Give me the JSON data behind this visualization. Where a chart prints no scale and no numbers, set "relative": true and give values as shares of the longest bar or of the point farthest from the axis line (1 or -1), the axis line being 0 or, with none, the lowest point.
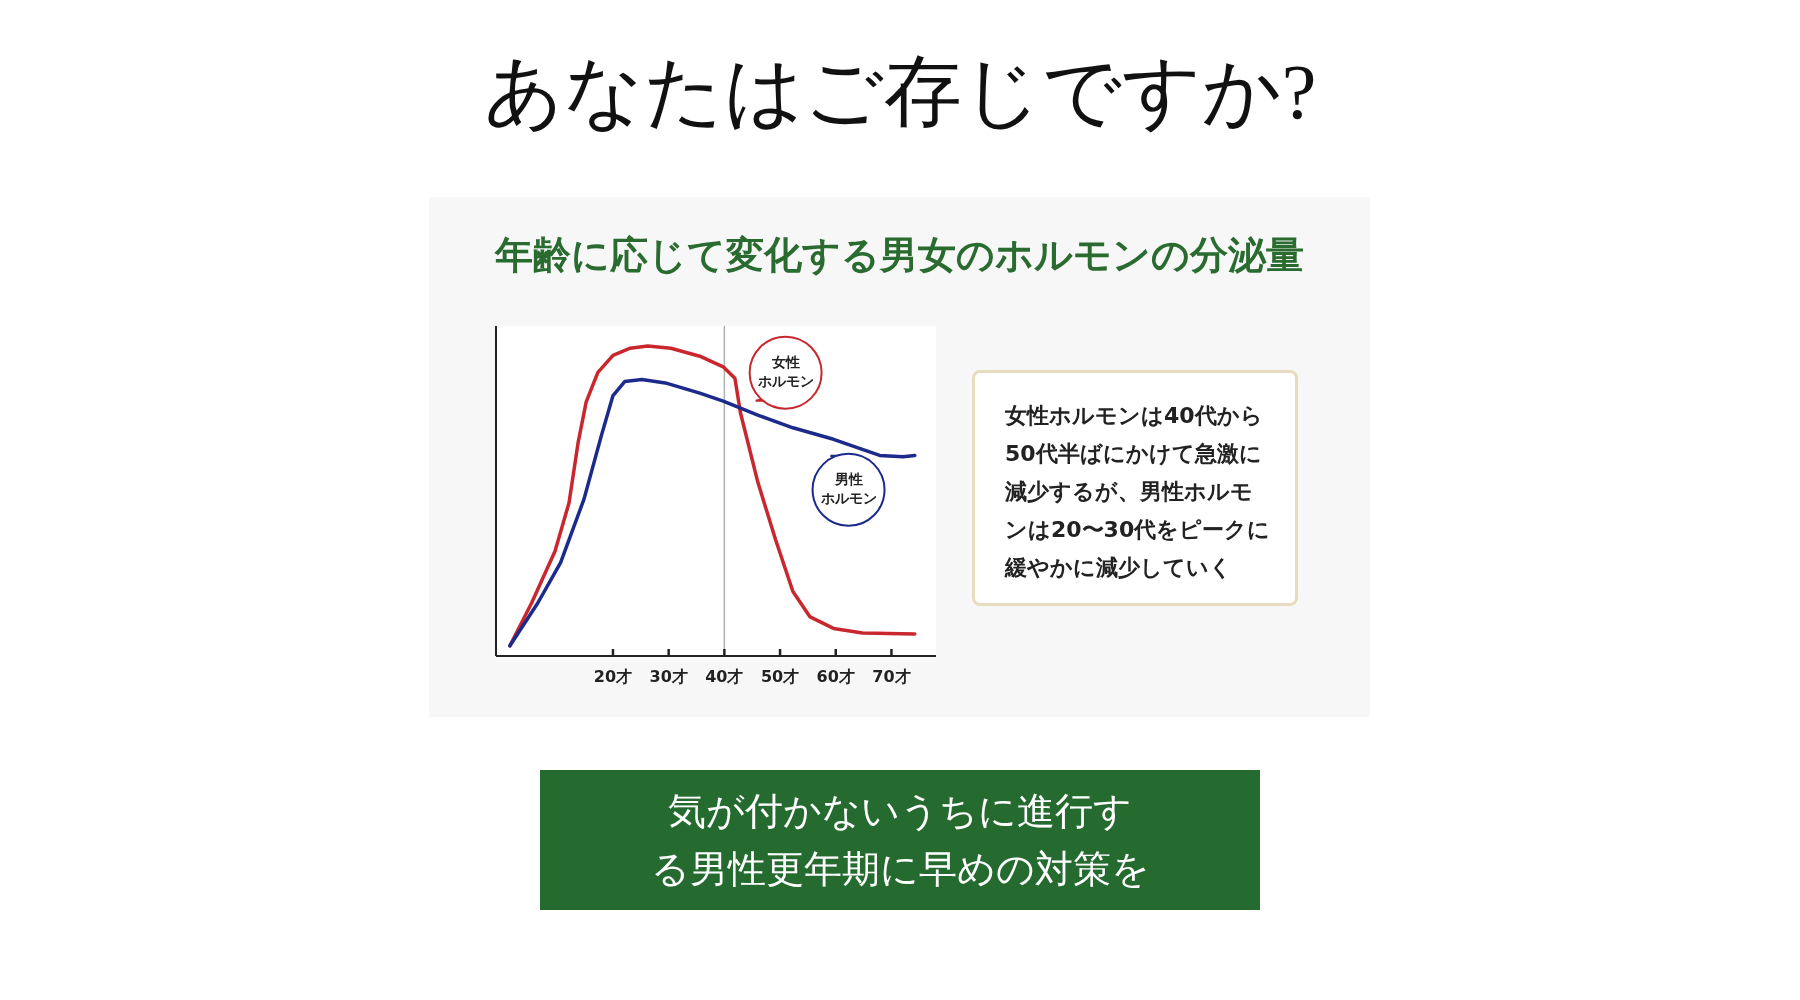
{
  "chart_data": {
    "type": "line",
    "title": "年齢に応じて変化する男女のホルモンの分泌量",
    "relative": true,
    "tick_labels": "x",
    "grid": false,
    "legend": "right",
    "marker": "none",
    "line_style": "solid",
    "xlim": [
      -1,
      78
    ],
    "xticks": [
      {
        "value": 20,
        "label": "20才"
      },
      {
        "value": 30,
        "label": "30才"
      },
      {
        "value": 40,
        "label": "40才"
      },
      {
        "value": 50,
        "label": "50才"
      },
      {
        "value": 60,
        "label": "60才"
      },
      {
        "value": 70,
        "label": "70才"
      }
    ],
    "ref_lines": [
      {
        "axis": "x",
        "value": 40,
        "color": "#b0b0b0"
      }
    ],
    "series": [
      {
        "name": "女性ホルモン",
        "color": "#c8282d",
        "x": [
          1.5,
          5.4,
          9.6,
          12.1,
          13.75,
          15.2,
          17.3,
          20,
          23.1,
          26.25,
          30.4,
          35.6,
          39.8,
          41.9,
          42.9,
          46,
          49.2,
          52.3,
          55.4,
          59.6,
          64.8,
          74.2
        ],
        "values": [
          0.033,
          0.171,
          0.338,
          0.494,
          0.69,
          0.82,
          0.915,
          0.97,
          0.993,
          1.0,
          0.993,
          0.967,
          0.933,
          0.896,
          0.784,
          0.561,
          0.375,
          0.208,
          0.126,
          0.089,
          0.074,
          0.071
        ]
      },
      {
        "name": "男性ホルモン",
        "color": "#1c2a8c",
        "x": [
          1.5,
          6.5,
          10.6,
          14.8,
          17.9,
          20,
          22.1,
          25.2,
          29.4,
          35.6,
          39.8,
          46,
          52.3,
          59.6,
          63.75,
          67.9,
          72.1,
          74.2
        ],
        "values": [
          0.033,
          0.171,
          0.301,
          0.506,
          0.71,
          0.84,
          0.885,
          0.892,
          0.881,
          0.848,
          0.822,
          0.777,
          0.736,
          0.699,
          0.673,
          0.647,
          0.643,
          0.647
        ]
      }
    ],
    "annotations": [
      "あなたはご存じですか?",
      "女性ホルモンは40代から50代半ばにかけて急激に減少するが、男性ホルモンは20〜30代をピークに緩やかに減少していく",
      "気が付かないうちに進行する男性更年期に早めの対策を"
    ]
  }
}
